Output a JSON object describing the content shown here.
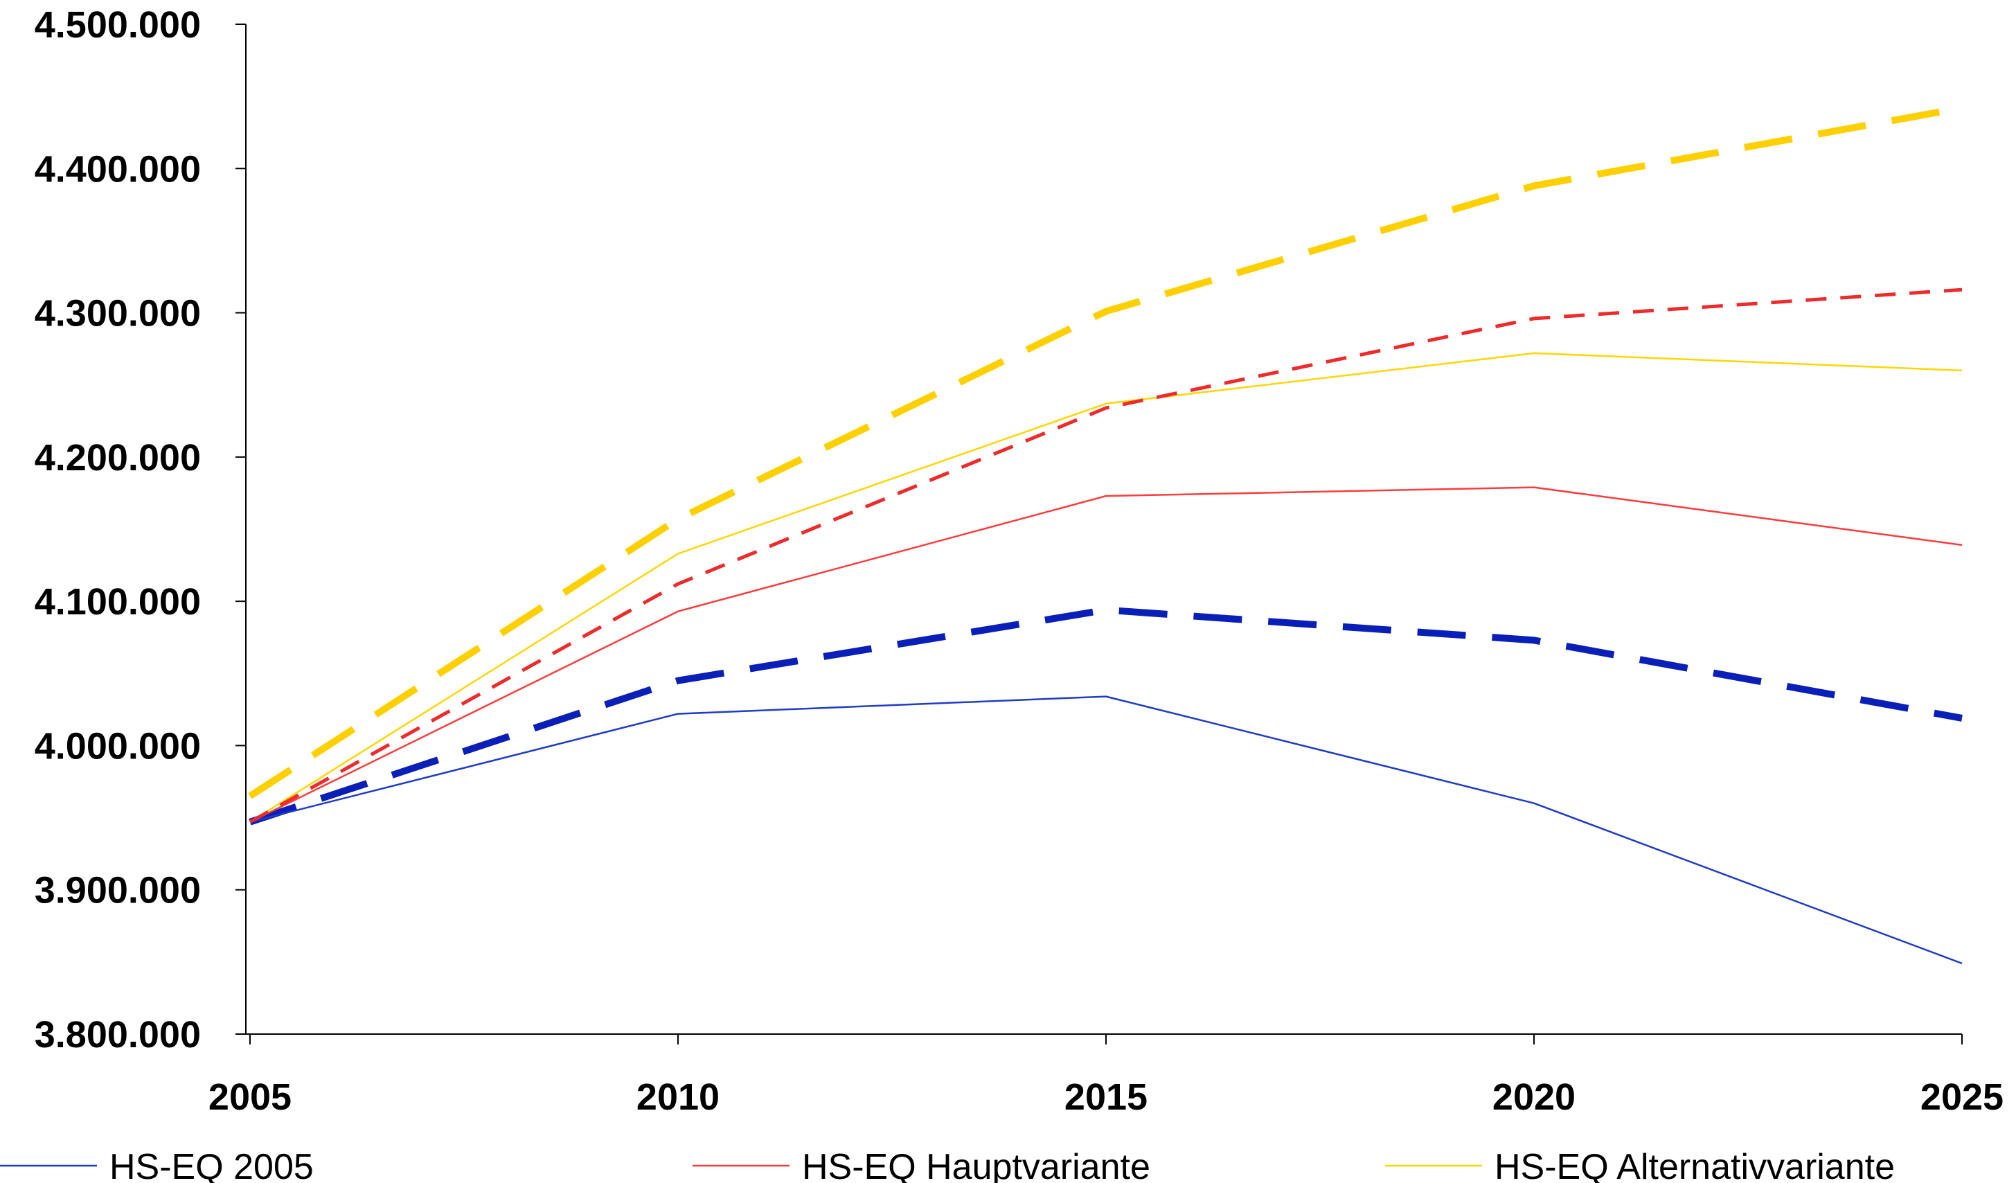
{
  "chart_data": {
    "type": "line",
    "title": "",
    "xlabel": "",
    "ylabel": "",
    "x": [
      2005,
      2010,
      2015,
      2020,
      2025
    ],
    "x_tick_labels": [
      "2005",
      "2010",
      "2015",
      "2020",
      "2025"
    ],
    "ylim": [
      3800000,
      4500000
    ],
    "y_ticks": [
      3800000,
      3900000,
      4000000,
      4100000,
      4200000,
      4300000,
      4400000,
      4500000
    ],
    "y_tick_labels": [
      "3.800.000",
      "3.900.000",
      "4.000.000",
      "4.100.000",
      "4.200.000",
      "4.300.000",
      "4.400.000",
      "4.500.000"
    ],
    "grid": false,
    "legend_position": "bottom",
    "series": [
      {
        "name": "HS-EQ 2005",
        "color": "#1f3cc8",
        "style": "solid",
        "values": [
          3947000,
          4022000,
          4034000,
          3960000,
          3849000
        ]
      },
      {
        "name": "HS-EQ Hauptvariante",
        "color": "#ff3b3b",
        "style": "solid",
        "values": [
          3947000,
          4093000,
          4173000,
          4179000,
          4139000
        ]
      },
      {
        "name": "HS-EQ Alternativvariante",
        "color": "#ffd700",
        "style": "solid",
        "values": [
          3947000,
          4133000,
          4237000,
          4272000,
          4260000
        ]
      },
      {
        "name": "",
        "color": "#0a1fb8",
        "style": "dashed-bold",
        "values": [
          3947000,
          4045000,
          4094000,
          4073000,
          4019000
        ]
      },
      {
        "name": "",
        "color": "#ee2a2a",
        "style": "dashed",
        "values": [
          3947000,
          4112000,
          4234000,
          4296000,
          4316000
        ]
      },
      {
        "name": "",
        "color": "#ffd000",
        "style": "dashed-bold",
        "values": [
          3965000,
          4157000,
          4301000,
          4388000,
          4442000
        ]
      }
    ]
  }
}
